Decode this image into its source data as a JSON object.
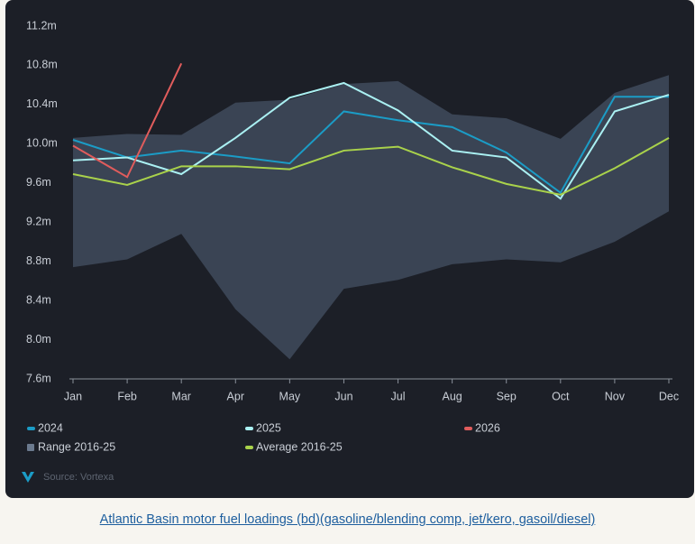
{
  "chart_data": {
    "type": "line",
    "categories": [
      "Jan",
      "Feb",
      "Mar",
      "Apr",
      "May",
      "Jun",
      "Jul",
      "Aug",
      "Sep",
      "Oct",
      "Nov",
      "Dec"
    ],
    "ylim": [
      7.6,
      11.2
    ],
    "yticks": [
      {
        "value": 7.6,
        "label": "7.6m"
      },
      {
        "value": 8.0,
        "label": "8.0m"
      },
      {
        "value": 8.4,
        "label": "8.4m"
      },
      {
        "value": 8.8,
        "label": "8.8m"
      },
      {
        "value": 9.2,
        "label": "9.2m"
      },
      {
        "value": 9.6,
        "label": "9.6m"
      },
      {
        "value": 10.0,
        "label": "10.0m"
      },
      {
        "value": 10.4,
        "label": "10.4m"
      },
      {
        "value": 10.8,
        "label": "10.8m"
      },
      {
        "value": 11.2,
        "label": "11.2m"
      }
    ],
    "grid": false,
    "range": {
      "name": "Range 2016-25",
      "color": "#3a4454",
      "high": [
        10.06,
        10.1,
        10.09,
        10.42,
        10.45,
        10.61,
        10.64,
        10.3,
        10.26,
        10.05,
        10.52,
        10.7
      ],
      "low": [
        8.74,
        8.82,
        9.08,
        8.31,
        7.8,
        8.52,
        8.61,
        8.77,
        8.82,
        8.79,
        9.0,
        9.31
      ]
    },
    "series": [
      {
        "name": "2024",
        "color": "#1b9cc6",
        "values": [
          10.04,
          9.86,
          9.93,
          9.87,
          9.8,
          10.33,
          10.24,
          10.17,
          9.91,
          9.5,
          10.48,
          10.48
        ]
      },
      {
        "name": "2025",
        "color": "#aaf0f2",
        "values": [
          9.83,
          9.86,
          9.69,
          10.06,
          10.47,
          10.62,
          10.34,
          9.93,
          9.86,
          9.44,
          10.33,
          10.5
        ]
      },
      {
        "name": "2026",
        "color": "#e05c5c",
        "values": [
          9.98,
          9.66,
          10.82,
          null,
          null,
          null,
          null,
          null,
          null,
          null,
          null,
          null
        ]
      },
      {
        "name": "Average 2016-25",
        "color": "#a9d24b",
        "values": [
          9.69,
          9.58,
          9.77,
          9.77,
          9.74,
          9.93,
          9.97,
          9.76,
          9.59,
          9.48,
          9.75,
          10.06
        ]
      }
    ],
    "source": "Source: Vortexa"
  },
  "caption": "Atlantic Basin motor fuel loadings (bd)(gasoline/blending comp, jet/kero, gasoil/diesel)"
}
